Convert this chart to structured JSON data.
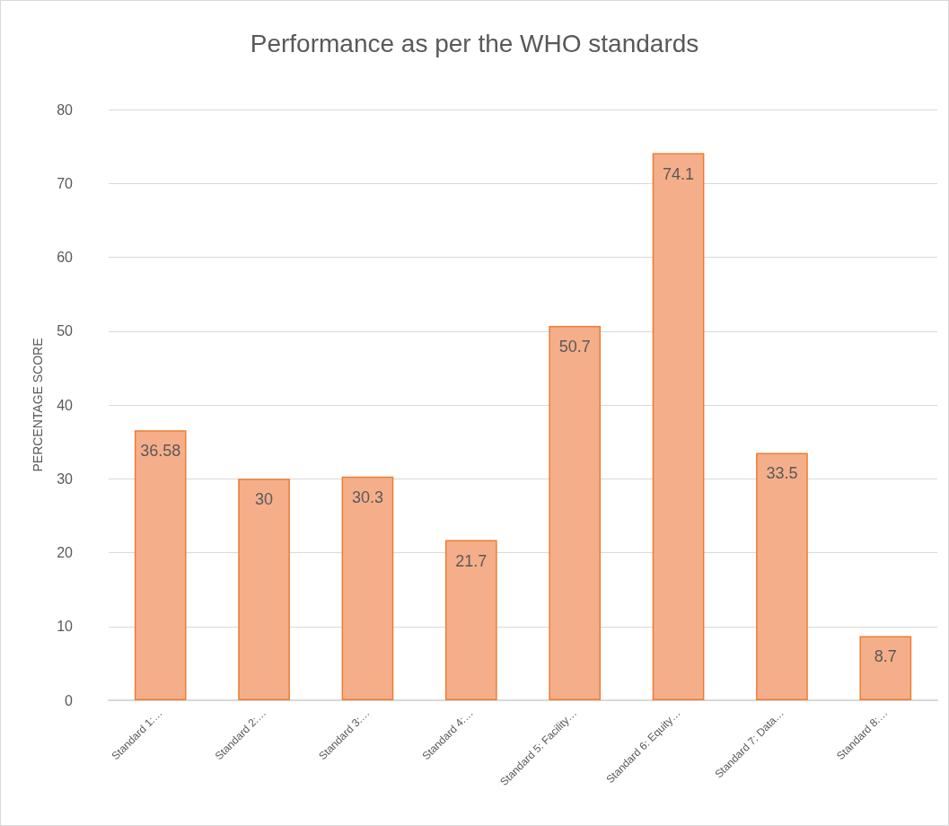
{
  "chart_data": {
    "type": "bar",
    "title": "Performance as per the WHO standards",
    "ylabel": "PERCENTAGE SCORE",
    "categories": [
      "Standard 1:…",
      "Standard 2:…",
      "Standard 3:…",
      "Standard 4:…",
      "Standard 5: Facility…",
      "Standard 6: Equity…",
      "Standard 7: Data…",
      "Standard 8:…"
    ],
    "values": [
      36.58,
      30,
      30.3,
      21.7,
      50.7,
      74.1,
      33.5,
      8.7
    ],
    "color": "#f5ae8a",
    "ylim": [
      0,
      80
    ],
    "yticks": [
      0,
      10,
      20,
      30,
      40,
      50,
      60,
      70,
      80
    ],
    "grid": "y",
    "data_labels": true
  }
}
